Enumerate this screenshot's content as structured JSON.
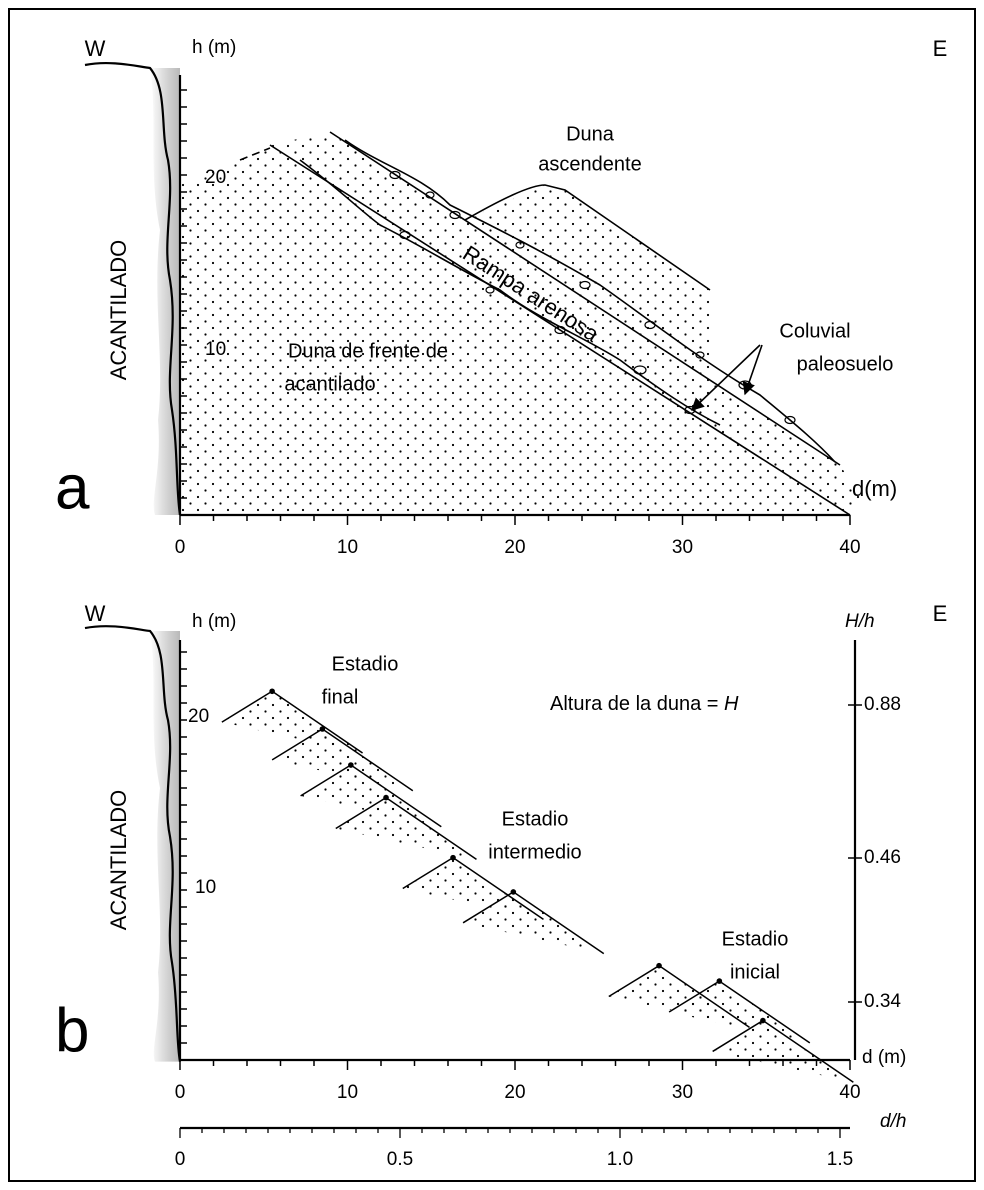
{
  "panel_a": {
    "label": "a",
    "west": "W",
    "east": "E",
    "y_axis_title": "h (m)",
    "x_axis_title": "d(m)",
    "x_tick_labels": [
      "0",
      "10",
      "20",
      "30",
      "40"
    ],
    "y_tick_labels": [
      "10",
      "20"
    ],
    "cliff_label": "ACANTILADO",
    "climbing_dune": [
      "Duna",
      "ascendente"
    ],
    "sand_ramp": "Rampa arenosa",
    "cliff_front_dune": [
      "Duna de frente de",
      "acantilado"
    ],
    "colluvium": [
      "Coluvial",
      "paleosuelo"
    ]
  },
  "panel_b": {
    "label": "b",
    "west": "W",
    "east": "E",
    "y_axis_title": "h (m)",
    "y2_axis_title": "H/h",
    "x_axis_title": "d (m)",
    "x2_axis_title": "d/h",
    "x_tick_labels": [
      "0",
      "10",
      "20",
      "30",
      "40"
    ],
    "x2_tick_labels": [
      "0",
      "0.5",
      "1.0",
      "1.5"
    ],
    "y_tick_labels": [
      "10",
      "20"
    ],
    "y2_tick_labels": [
      "0.88",
      "0.46",
      "0.34"
    ],
    "cliff_label": "ACANTILADO",
    "dune_height_text": "Altura de la duna =",
    "dune_height_symbol": "H",
    "final_stage": [
      "Estadio",
      "final"
    ],
    "intermediate_stage": [
      "Estadio",
      "intermedio"
    ],
    "initial_stage": [
      "Estadio",
      "inicial"
    ]
  }
}
